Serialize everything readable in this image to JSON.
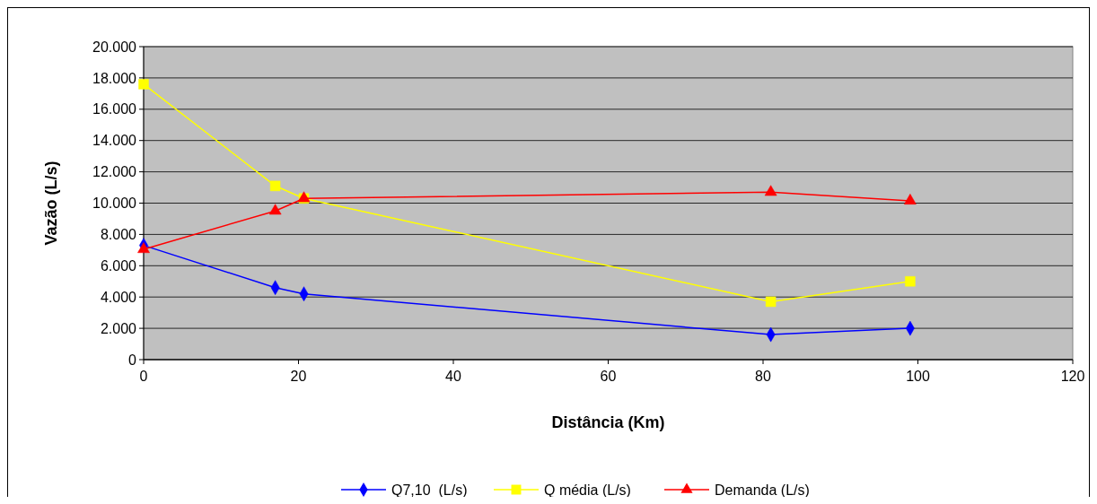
{
  "chart_data": {
    "type": "line",
    "xlabel": "Distância (Km)",
    "ylabel": "Vazão (L/s)",
    "xlim": [
      0,
      120
    ],
    "xticks": [
      0,
      20,
      40,
      60,
      80,
      100,
      120
    ],
    "ylim": [
      0,
      20000
    ],
    "yticks": [
      {
        "value": 0,
        "label": "0"
      },
      {
        "value": 2000,
        "label": "2.000"
      },
      {
        "value": 4000,
        "label": "4.000"
      },
      {
        "value": 6000,
        "label": "6.000"
      },
      {
        "value": 8000,
        "label": "8.000"
      },
      {
        "value": 10000,
        "label": "10.000"
      },
      {
        "value": 12000,
        "label": "12.000"
      },
      {
        "value": 14000,
        "label": "14.000"
      },
      {
        "value": 16000,
        "label": "16.000"
      },
      {
        "value": 18000,
        "label": "18.000"
      },
      {
        "value": 20000,
        "label": "20.000"
      }
    ],
    "grid": "y",
    "legend": "bottom",
    "x": [
      0,
      17,
      20.7,
      81,
      99
    ],
    "series": [
      {
        "name": "Q7,10  (L/s)",
        "color": "#0000ff",
        "marker": "diamond",
        "values": [
          7300,
          4600,
          4200,
          1600,
          2000
        ]
      },
      {
        "name": "Q média (L/s)",
        "color": "#ffff00",
        "marker": "square",
        "values": [
          17600,
          11100,
          10300,
          3700,
          5000
        ]
      },
      {
        "name": "Demanda (L/s)",
        "color": "#ff0000",
        "marker": "triangle",
        "values": [
          7050,
          9500,
          10300,
          10700,
          10150
        ]
      }
    ]
  }
}
